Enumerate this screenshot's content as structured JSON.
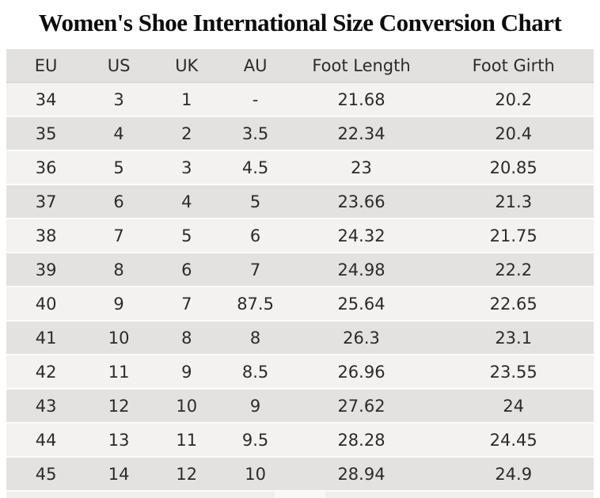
{
  "page": {
    "title": "Women's Shoe International Size Conversion Chart"
  },
  "colors": {
    "page_bg": "#ffffff",
    "header_bg": "#e2e1e0",
    "row_light": "#f3f2f0",
    "row_dark": "#e3e2e0",
    "separator": "#fbfbfa",
    "header_border": "#d8d7d5",
    "text": "#2b2b2b",
    "title_text": "#0d0d0d",
    "strip_bg": "#f0efed",
    "strip_highlight": "#f9f8f6"
  },
  "chart_data": {
    "type": "table",
    "title": "Women's Shoe International Size Conversion Chart",
    "columns": [
      "EU",
      "US",
      "UK",
      "AU",
      "Foot Length",
      "Foot Girth"
    ],
    "rows": [
      [
        "34",
        "3",
        "1",
        "-",
        "21.68",
        "20.2"
      ],
      [
        "35",
        "4",
        "2",
        "3.5",
        "22.34",
        "20.4"
      ],
      [
        "36",
        "5",
        "3",
        "4.5",
        "23",
        "20.85"
      ],
      [
        "37",
        "6",
        "4",
        "5",
        "23.66",
        "21.3"
      ],
      [
        "38",
        "7",
        "5",
        "6",
        "24.32",
        "21.75"
      ],
      [
        "39",
        "8",
        "6",
        "7",
        "24.98",
        "22.2"
      ],
      [
        "40",
        "9",
        "7",
        "87.5",
        "25.64",
        "22.65"
      ],
      [
        "41",
        "10",
        "8",
        "8",
        "26.3",
        "23.1"
      ],
      [
        "42",
        "11",
        "9",
        "8.5",
        "26.96",
        "23.55"
      ],
      [
        "43",
        "12",
        "10",
        "9",
        "27.62",
        "24"
      ],
      [
        "44",
        "13",
        "11",
        "9.5",
        "28.28",
        "24.45"
      ],
      [
        "45",
        "14",
        "12",
        "10",
        "28.94",
        "24.9"
      ]
    ]
  }
}
